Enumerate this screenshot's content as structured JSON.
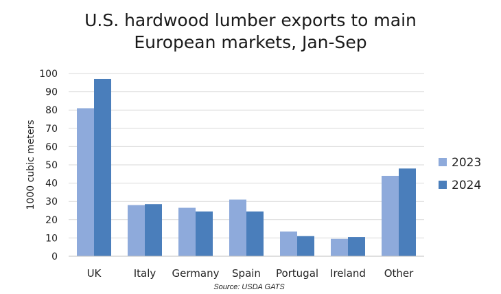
{
  "chart_data": {
    "type": "bar",
    "title_lines": [
      "U.S. hardwood lumber exports to main",
      "European markets, Jan-Sep"
    ],
    "ylabel": "1000 cubic meters",
    "xlabel": "",
    "ylim": [
      0,
      100
    ],
    "yticks": [
      0,
      10,
      20,
      30,
      40,
      50,
      60,
      70,
      80,
      90,
      100
    ],
    "categories": [
      "UK",
      "Italy",
      "Germany",
      "Spain",
      "Portugal",
      "Ireland",
      "Other"
    ],
    "series": [
      {
        "name": "2023",
        "color": "#8eaadb",
        "values": [
          81,
          28,
          26.5,
          31,
          13.5,
          9.5,
          44
        ]
      },
      {
        "name": "2024",
        "color": "#4a7ebb",
        "values": [
          97,
          28.5,
          24.5,
          24.5,
          11,
          10.5,
          48
        ]
      }
    ],
    "grid": true,
    "legend_position": "right",
    "source": "Source: USDA GATS"
  }
}
